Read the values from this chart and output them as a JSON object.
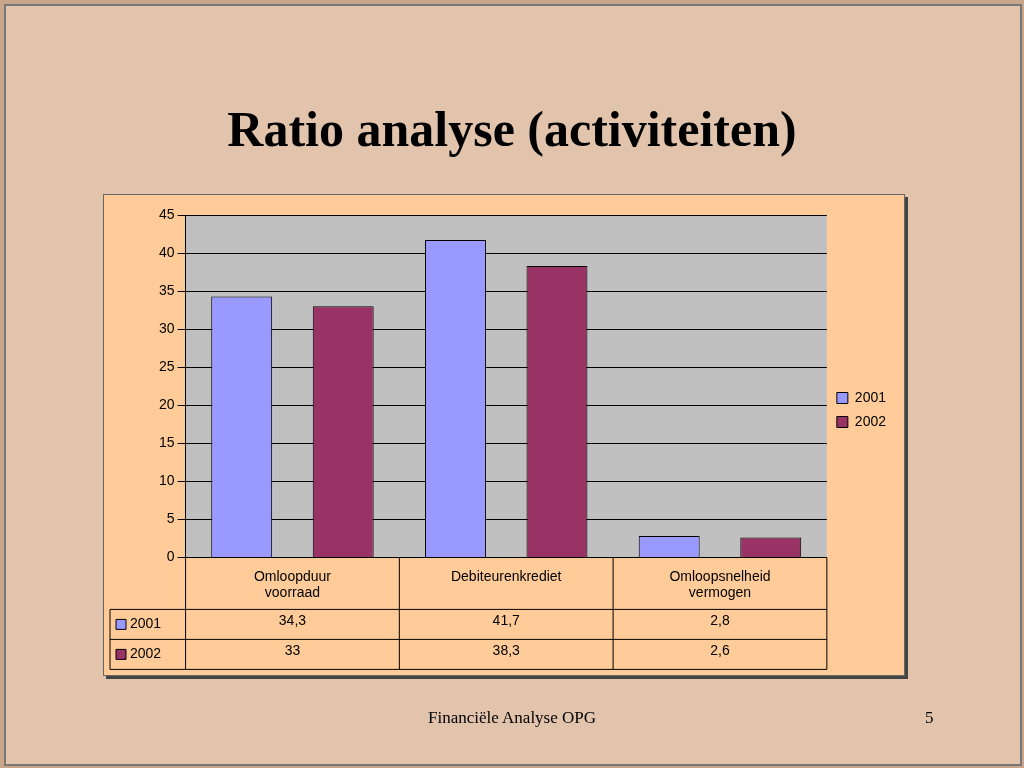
{
  "chart_data": {
    "type": "bar",
    "title": "Ratio analyse (activiteiten)",
    "categories": [
      "Omloopduur voorraad",
      "Debiteurenkrediet",
      "Omloopsnelheid vermogen"
    ],
    "series": [
      {
        "name": "2001",
        "color": "#9999ff",
        "values": [
          34.3,
          41.7,
          2.8
        ],
        "value_labels": [
          "34,3",
          "41,7",
          "2,8"
        ]
      },
      {
        "name": "2002",
        "color": "#993366",
        "values": [
          33,
          38.3,
          2.6
        ],
        "value_labels": [
          "33",
          "38,3",
          "2,6"
        ]
      }
    ],
    "ylim": [
      0,
      45
    ],
    "yticks": [
      0,
      5,
      10,
      15,
      20,
      25,
      30,
      35,
      40,
      45
    ],
    "grid": "y",
    "legend": "right",
    "data_labels": true,
    "annotations": [
      "Financiële Analyse OPG",
      "5"
    ]
  }
}
